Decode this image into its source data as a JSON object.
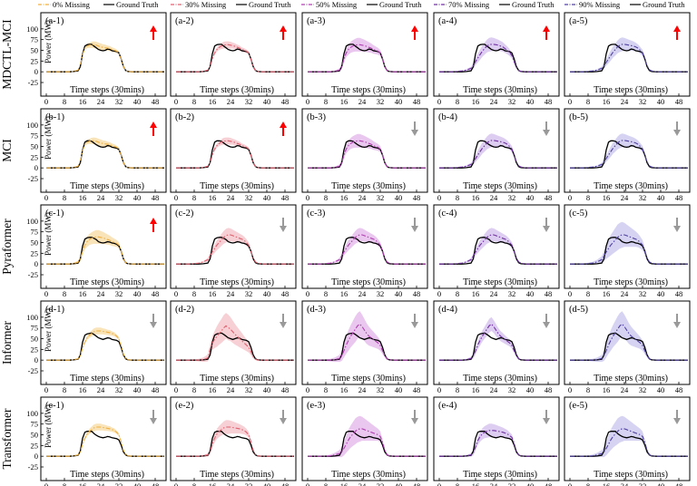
{
  "chart_data": {
    "type": "line",
    "description_rows": [
      "MDCTL-MCI",
      "MCI",
      "Pyraformer",
      "Informer",
      "Transformer"
    ],
    "columns_missing": [
      "0% Missing",
      "30% Missing",
      "50% Missing",
      "70% Missing",
      "90% Missing"
    ],
    "legend": [
      {
        "label": "0% Missing",
        "color": "#f0b040",
        "style": "dashdot"
      },
      {
        "label": "Ground Truth",
        "color": "#000000",
        "style": "solid"
      },
      {
        "label": "30% Missing",
        "color": "#e06070",
        "style": "dashdot"
      },
      {
        "label": "Ground Truth",
        "color": "#000000",
        "style": "solid"
      },
      {
        "label": "50% Missing",
        "color": "#b040b0",
        "style": "dashdot"
      },
      {
        "label": "Ground Truth",
        "color": "#000000",
        "style": "solid"
      },
      {
        "label": "70% Missing",
        "color": "#7030a0",
        "style": "dashdot"
      },
      {
        "label": "Ground Truth",
        "color": "#000000",
        "style": "solid"
      },
      {
        "label": "90% Missing",
        "color": "#5040a0",
        "style": "dashdot"
      },
      {
        "label": "Ground Truth",
        "color": "#000000",
        "style": "solid"
      }
    ],
    "column_colors": [
      "#f0b040",
      "#e06070",
      "#b040b0",
      "#7030a0",
      "#5040a0"
    ],
    "band_colors": [
      "#f7d9a0",
      "#f3c0c6",
      "#e2b4e8",
      "#d2bcec",
      "#c7c4ec"
    ],
    "xlabel": "Time steps (30mins)",
    "ylabel": "Power (MW)",
    "xlim": [
      0,
      52
    ],
    "ylim": [
      -25,
      125
    ],
    "xticks": [
      "0",
      "8",
      "16",
      "24",
      "32",
      "40",
      "48"
    ],
    "xtick_values": [
      0,
      8,
      16,
      24,
      32,
      40,
      48
    ],
    "yticks": [
      "100",
      "75",
      "50",
      "25",
      "0",
      "-25"
    ],
    "ytick_values": [
      100,
      75,
      50,
      25,
      0,
      -25
    ],
    "x": [
      0,
      2,
      4,
      6,
      8,
      10,
      12,
      14,
      15,
      16,
      17,
      18,
      19,
      20,
      21,
      22,
      23,
      24,
      25,
      26,
      27,
      28,
      29,
      30,
      31,
      32,
      33,
      34,
      35,
      36,
      38,
      40,
      42,
      44,
      46,
      48,
      50,
      52
    ],
    "ground_truth": [
      [
        0,
        0,
        0,
        0,
        0,
        0,
        0.5,
        2,
        12,
        42,
        60,
        63,
        64,
        64,
        60,
        56,
        52,
        50,
        49,
        50,
        53,
        52,
        49,
        48,
        47,
        44,
        30,
        12,
        3,
        0.5,
        0,
        0,
        0,
        0,
        0,
        0,
        0,
        0
      ],
      [
        0,
        0,
        0,
        0,
        0,
        0,
        0.5,
        2,
        12,
        42,
        60,
        63,
        63,
        62,
        58,
        54,
        51,
        49,
        48,
        49,
        52,
        51,
        48,
        47,
        46,
        43,
        30,
        12,
        3,
        0.5,
        0,
        0,
        0,
        0,
        0,
        0,
        0,
        0
      ],
      [
        0,
        0,
        0,
        0,
        0,
        0,
        0.5,
        2,
        12,
        42,
        58,
        61,
        62,
        62,
        60,
        57,
        52,
        50,
        49,
        50,
        52,
        51,
        49,
        48,
        46,
        42,
        30,
        12,
        3,
        0.5,
        0,
        0,
        0,
        0,
        0,
        0,
        0,
        0
      ],
      [
        0,
        0,
        0,
        0,
        0,
        0,
        0.5,
        2,
        12,
        42,
        58,
        61,
        62,
        63,
        60,
        56,
        52,
        50,
        48,
        50,
        52,
        51,
        48,
        47,
        46,
        43,
        30,
        12,
        3,
        0.5,
        0,
        0,
        0,
        0,
        0,
        0,
        0,
        0
      ],
      [
        0,
        0,
        0,
        0,
        0,
        0,
        0.5,
        2,
        12,
        42,
        56,
        58,
        58,
        58,
        53,
        49,
        46,
        44,
        43,
        44,
        46,
        45,
        43,
        42,
        41,
        38,
        26,
        10,
        3,
        0.5,
        0,
        0,
        0,
        0,
        0,
        0,
        0,
        0
      ]
    ],
    "pred_shapes": {
      "A": [
        0,
        0,
        0,
        0,
        0,
        0,
        1,
        4,
        16,
        40,
        55,
        60,
        62,
        63,
        63,
        62,
        60,
        58,
        57,
        56,
        55,
        54,
        52,
        50,
        48,
        44,
        30,
        12,
        3,
        0.5,
        0,
        0,
        0,
        0,
        0,
        0,
        0,
        0
      ],
      "B": [
        0,
        0,
        0,
        0,
        0,
        0,
        1,
        4,
        12,
        30,
        44,
        52,
        57,
        60,
        62,
        63,
        63,
        62,
        61,
        59,
        57,
        55,
        52,
        50,
        48,
        44,
        30,
        12,
        3,
        0.5,
        0,
        0,
        0,
        0,
        0,
        0,
        0,
        0
      ],
      "C": [
        0,
        0,
        0,
        0,
        1,
        2,
        4,
        8,
        14,
        24,
        32,
        40,
        48,
        54,
        60,
        63,
        64,
        64,
        63,
        62,
        60,
        58,
        54,
        50,
        45,
        38,
        24,
        10,
        3,
        1,
        0,
        0,
        0,
        0,
        0,
        0,
        0,
        0
      ],
      "D": [
        0,
        0,
        0,
        0,
        1,
        2,
        4,
        8,
        14,
        22,
        30,
        38,
        46,
        52,
        58,
        62,
        64,
        64,
        63,
        62,
        61,
        60,
        58,
        55,
        50,
        44,
        30,
        14,
        5,
        2,
        0,
        0,
        0,
        0,
        0,
        0,
        0,
        0
      ],
      "E": [
        0,
        0,
        0,
        0,
        1,
        2,
        5,
        10,
        18,
        28,
        36,
        44,
        50,
        56,
        62,
        66,
        68,
        68,
        66,
        64,
        62,
        60,
        58,
        55,
        50,
        44,
        30,
        14,
        5,
        2,
        0,
        0,
        0,
        0,
        0,
        0,
        0,
        0
      ],
      "F": [
        0,
        0,
        0,
        0,
        0,
        0,
        1,
        3,
        10,
        28,
        42,
        52,
        58,
        62,
        66,
        68,
        68,
        68,
        67,
        66,
        65,
        64,
        62,
        60,
        56,
        50,
        34,
        14,
        4,
        1,
        0,
        0,
        0,
        0,
        0,
        0,
        0,
        0
      ],
      "G": [
        0,
        0,
        0,
        0,
        0,
        0,
        1,
        5,
        25,
        40,
        48,
        55,
        62,
        68,
        75,
        80,
        76,
        72,
        66,
        60,
        55,
        50,
        45,
        40,
        35,
        30,
        20,
        8,
        2,
        0,
        0,
        0,
        0,
        0,
        0,
        0,
        0,
        0
      ],
      "H": [
        0,
        0,
        0,
        0,
        0,
        0,
        1,
        4,
        10,
        22,
        35,
        46,
        56,
        64,
        72,
        80,
        84,
        78,
        70,
        62,
        56,
        52,
        48,
        44,
        40,
        34,
        22,
        10,
        3,
        1,
        0,
        0,
        0,
        0,
        0,
        0,
        0,
        0
      ],
      "I": [
        0,
        0,
        0,
        0,
        0,
        1,
        3,
        6,
        10,
        18,
        28,
        38,
        46,
        52,
        58,
        62,
        64,
        64,
        62,
        60,
        58,
        56,
        54,
        52,
        50,
        46,
        32,
        14,
        4,
        1,
        0,
        0,
        0,
        0,
        0,
        0,
        0,
        0
      ],
      "J": [
        0,
        0,
        0,
        0,
        0,
        0,
        1,
        3,
        8,
        22,
        36,
        46,
        52,
        56,
        58,
        60,
        60,
        60,
        59,
        58,
        57,
        56,
        54,
        52,
        48,
        44,
        30,
        12,
        3,
        1,
        0,
        0,
        0,
        0,
        0,
        0,
        0,
        0
      ]
    },
    "band_halfwidths": {
      "narrow": [
        0,
        0,
        0,
        0,
        0,
        0,
        0,
        1,
        2,
        3,
        4,
        5,
        6,
        7,
        8,
        8,
        8,
        8,
        7,
        7,
        6,
        6,
        5,
        5,
        4,
        4,
        3,
        2,
        1,
        0,
        0,
        0,
        0,
        0,
        0,
        0,
        0,
        0
      ],
      "medium": [
        0,
        0,
        0,
        0,
        0,
        1,
        2,
        4,
        6,
        8,
        10,
        12,
        13,
        14,
        15,
        16,
        16,
        15,
        14,
        13,
        12,
        11,
        10,
        9,
        8,
        7,
        5,
        3,
        1,
        0,
        0,
        0,
        0,
        0,
        0,
        0,
        0,
        0
      ],
      "wide": [
        0,
        0,
        0,
        1,
        2,
        3,
        5,
        8,
        12,
        16,
        20,
        24,
        26,
        28,
        30,
        30,
        30,
        28,
        26,
        24,
        22,
        20,
        18,
        16,
        14,
        12,
        8,
        4,
        2,
        1,
        0,
        0,
        0,
        0,
        0,
        0,
        0,
        0
      ]
    },
    "panels": [
      {
        "label": "(a-1)",
        "row": 0,
        "col": 0,
        "pred": "A",
        "band": "narrow",
        "arrow": "up"
      },
      {
        "label": "(a-2)",
        "row": 0,
        "col": 1,
        "pred": "B",
        "band": "narrow",
        "arrow": "up"
      },
      {
        "label": "(a-3)",
        "row": 0,
        "col": 2,
        "pred": "B",
        "band": "medium",
        "arrow": "up"
      },
      {
        "label": "(a-4)",
        "row": 0,
        "col": 3,
        "pred": "C",
        "band": "medium",
        "arrow": "up"
      },
      {
        "label": "(a-5)",
        "row": 0,
        "col": 4,
        "pred": "D",
        "band": "medium",
        "arrow": "up"
      },
      {
        "label": "(b-1)",
        "row": 1,
        "col": 0,
        "pred": "A",
        "band": "narrow",
        "arrow": "up"
      },
      {
        "label": "(b-2)",
        "row": 1,
        "col": 1,
        "pred": "B",
        "band": "narrow",
        "arrow": "up"
      },
      {
        "label": "(b-3)",
        "row": 1,
        "col": 2,
        "pred": "B",
        "band": "medium",
        "arrow": "down"
      },
      {
        "label": "(b-4)",
        "row": 1,
        "col": 3,
        "pred": "D",
        "band": "medium",
        "arrow": "down"
      },
      {
        "label": "(b-5)",
        "row": 1,
        "col": 4,
        "pred": "D",
        "band": "medium",
        "arrow": "down"
      },
      {
        "label": "(c-1)",
        "row": 2,
        "col": 0,
        "pred": "B",
        "band": "medium",
        "arrow": "up"
      },
      {
        "label": "(c-2)",
        "row": 2,
        "col": 1,
        "pred": "E",
        "band": "medium",
        "arrow": "down"
      },
      {
        "label": "(c-3)",
        "row": 2,
        "col": 2,
        "pred": "E",
        "band": "medium",
        "arrow": "down"
      },
      {
        "label": "(c-4)",
        "row": 2,
        "col": 3,
        "pred": "E",
        "band": "medium",
        "arrow": "down"
      },
      {
        "label": "(c-5)",
        "row": 2,
        "col": 4,
        "pred": "E",
        "band": "wide",
        "arrow": "down"
      },
      {
        "label": "(d-1)",
        "row": 3,
        "col": 0,
        "pred": "F",
        "band": "narrow",
        "arrow": "down"
      },
      {
        "label": "(d-2)",
        "row": 3,
        "col": 1,
        "pred": "G",
        "band": "wide",
        "arrow": "down"
      },
      {
        "label": "(d-3)",
        "row": 3,
        "col": 2,
        "pred": "H",
        "band": "wide",
        "arrow": "down"
      },
      {
        "label": "(d-4)",
        "row": 3,
        "col": 3,
        "pred": "H",
        "band": "medium",
        "arrow": "down"
      },
      {
        "label": "(d-5)",
        "row": 3,
        "col": 4,
        "pred": "H",
        "band": "wide",
        "arrow": "down"
      },
      {
        "label": "(e-1)",
        "row": 4,
        "col": 0,
        "pred": "F",
        "band": "narrow",
        "arrow": "down"
      },
      {
        "label": "(e-2)",
        "row": 4,
        "col": 1,
        "pred": "F",
        "band": "medium",
        "arrow": "down"
      },
      {
        "label": "(e-3)",
        "row": 4,
        "col": 2,
        "pred": "I",
        "band": "wide",
        "arrow": "down"
      },
      {
        "label": "(e-4)",
        "row": 4,
        "col": 3,
        "pred": "J",
        "band": "medium",
        "arrow": "down"
      },
      {
        "label": "(e-5)",
        "row": 4,
        "col": 4,
        "pred": "I",
        "band": "wide",
        "arrow": "down"
      }
    ],
    "arrow_colors": {
      "up": "#ff0000",
      "down": "#999999"
    }
  }
}
